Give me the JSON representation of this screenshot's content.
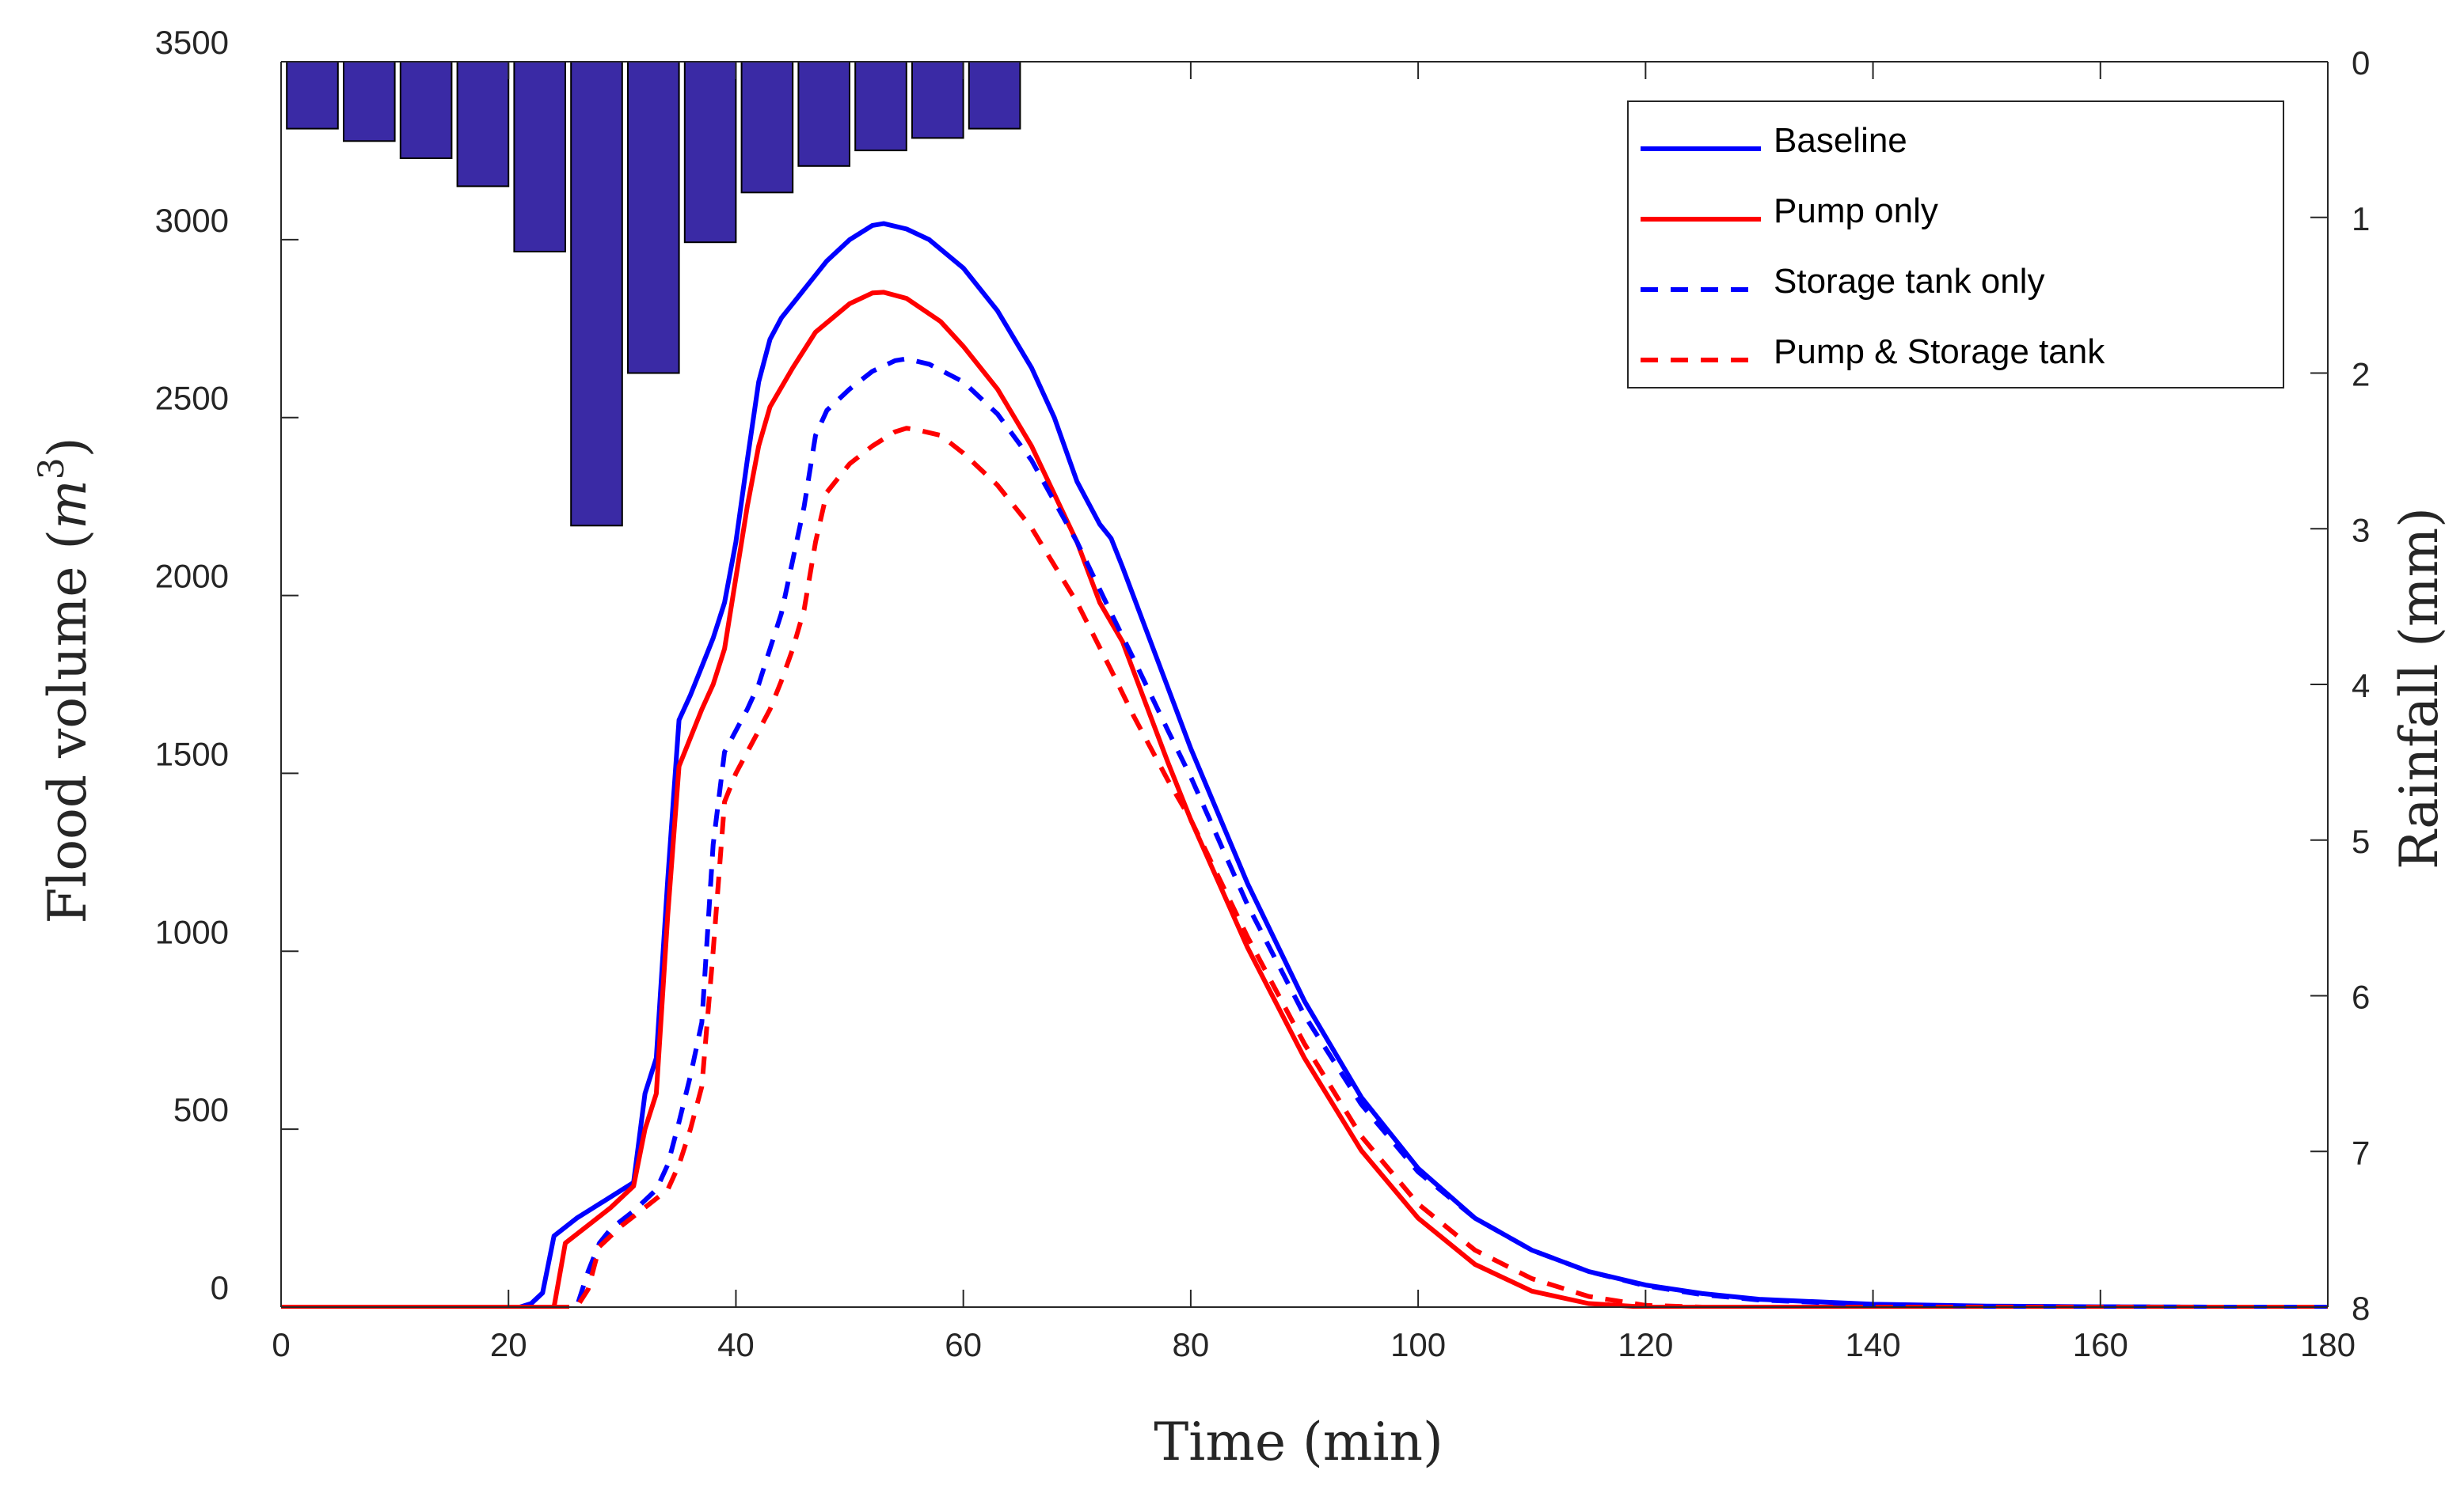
{
  "chart_data": {
    "type": "line",
    "xlabel": "Time (min)",
    "ylabel_left": {
      "prefix": "Flood volume (",
      "var": "m",
      "exp": "3",
      "suffix": ")"
    },
    "ylabel_right": "Rainfall (mm)",
    "xlim": [
      0,
      180
    ],
    "ylim_left": [
      0,
      3500
    ],
    "ylim_right_reversed": [
      0,
      8
    ],
    "xticks": [
      0,
      20,
      40,
      60,
      80,
      100,
      120,
      140,
      160,
      180
    ],
    "yticks_left": [
      0,
      500,
      1000,
      1500,
      2000,
      2500,
      3000,
      3500
    ],
    "yticks_right": [
      0,
      1,
      2,
      3,
      4,
      5,
      6,
      7,
      8
    ],
    "rainfall": {
      "name": "Rainfall",
      "color": "#3a2aa5",
      "bar_width_min": 4.5,
      "bars": [
        {
          "t": 0.5,
          "mm": 0.43
        },
        {
          "t": 5.5,
          "mm": 0.51
        },
        {
          "t": 10.5,
          "mm": 0.62
        },
        {
          "t": 15.5,
          "mm": 0.8
        },
        {
          "t": 20.5,
          "mm": 1.22
        },
        {
          "t": 25.5,
          "mm": 2.98
        },
        {
          "t": 30.5,
          "mm": 2.0
        },
        {
          "t": 35.5,
          "mm": 1.16
        },
        {
          "t": 40.5,
          "mm": 0.84
        },
        {
          "t": 45.5,
          "mm": 0.67
        },
        {
          "t": 50.5,
          "mm": 0.57
        },
        {
          "t": 55.5,
          "mm": 0.49
        },
        {
          "t": 60.5,
          "mm": 0.43
        }
      ]
    },
    "series": [
      {
        "name": "Baseline",
        "color": "#0000ff",
        "dash": "solid",
        "points": [
          [
            0,
            0
          ],
          [
            21,
            0
          ],
          [
            22,
            10
          ],
          [
            23,
            40
          ],
          [
            24,
            200
          ],
          [
            26,
            250
          ],
          [
            28,
            290
          ],
          [
            30,
            330
          ],
          [
            31,
            350
          ],
          [
            32,
            600
          ],
          [
            33,
            700
          ],
          [
            34,
            1200
          ],
          [
            35,
            1650
          ],
          [
            36,
            1720
          ],
          [
            37,
            1800
          ],
          [
            38,
            1880
          ],
          [
            39,
            1980
          ],
          [
            40,
            2150
          ],
          [
            41,
            2380
          ],
          [
            42,
            2600
          ],
          [
            43,
            2720
          ],
          [
            44,
            2780
          ],
          [
            46,
            2860
          ],
          [
            48,
            2940
          ],
          [
            50,
            3000
          ],
          [
            52,
            3040
          ],
          [
            53,
            3045
          ],
          [
            55,
            3030
          ],
          [
            57,
            3000
          ],
          [
            60,
            2920
          ],
          [
            63,
            2800
          ],
          [
            66,
            2640
          ],
          [
            68,
            2500
          ],
          [
            70,
            2320
          ],
          [
            71,
            2260
          ],
          [
            72,
            2200
          ],
          [
            73,
            2160
          ],
          [
            74,
            2080
          ],
          [
            76,
            1910
          ],
          [
            78,
            1740
          ],
          [
            80,
            1570
          ],
          [
            85,
            1190
          ],
          [
            90,
            860
          ],
          [
            95,
            590
          ],
          [
            100,
            390
          ],
          [
            105,
            250
          ],
          [
            110,
            160
          ],
          [
            115,
            100
          ],
          [
            120,
            62
          ],
          [
            125,
            38
          ],
          [
            130,
            22
          ],
          [
            140,
            8
          ],
          [
            150,
            3
          ],
          [
            160,
            1
          ],
          [
            170,
            0
          ],
          [
            180,
            0
          ]
        ]
      },
      {
        "name": "Pump only",
        "color": "#ff0000",
        "dash": "solid",
        "points": [
          [
            0,
            0
          ],
          [
            24,
            0
          ],
          [
            25,
            180
          ],
          [
            27,
            230
          ],
          [
            29,
            280
          ],
          [
            31,
            340
          ],
          [
            32,
            500
          ],
          [
            33,
            600
          ],
          [
            34,
            1100
          ],
          [
            35,
            1520
          ],
          [
            36,
            1600
          ],
          [
            37,
            1680
          ],
          [
            38,
            1750
          ],
          [
            39,
            1850
          ],
          [
            40,
            2050
          ],
          [
            41,
            2250
          ],
          [
            42,
            2420
          ],
          [
            43,
            2530
          ],
          [
            45,
            2640
          ],
          [
            47,
            2740
          ],
          [
            50,
            2820
          ],
          [
            52,
            2850
          ],
          [
            53,
            2852
          ],
          [
            55,
            2835
          ],
          [
            58,
            2770
          ],
          [
            60,
            2700
          ],
          [
            63,
            2580
          ],
          [
            66,
            2420
          ],
          [
            70,
            2150
          ],
          [
            72,
            1980
          ],
          [
            74,
            1870
          ],
          [
            76,
            1700
          ],
          [
            78,
            1530
          ],
          [
            80,
            1370
          ],
          [
            85,
            1010
          ],
          [
            90,
            700
          ],
          [
            95,
            440
          ],
          [
            100,
            250
          ],
          [
            105,
            120
          ],
          [
            110,
            45
          ],
          [
            115,
            10
          ],
          [
            120,
            0
          ],
          [
            180,
            0
          ]
        ]
      },
      {
        "name": "Storage tank only",
        "color": "#0000ff",
        "dash": "dashed",
        "points": [
          [
            0,
            0
          ],
          [
            26,
            0
          ],
          [
            27,
            100
          ],
          [
            28,
            180
          ],
          [
            29,
            220
          ],
          [
            31,
            270
          ],
          [
            32,
            300
          ],
          [
            33,
            330
          ],
          [
            34,
            400
          ],
          [
            35,
            520
          ],
          [
            36,
            650
          ],
          [
            37,
            800
          ],
          [
            38,
            1300
          ],
          [
            39,
            1560
          ],
          [
            40,
            1620
          ],
          [
            41,
            1680
          ],
          [
            42,
            1750
          ],
          [
            43,
            1850
          ],
          [
            44,
            1950
          ],
          [
            45,
            2100
          ],
          [
            46,
            2250
          ],
          [
            47,
            2450
          ],
          [
            48,
            2520
          ],
          [
            50,
            2580
          ],
          [
            52,
            2630
          ],
          [
            54,
            2660
          ],
          [
            55,
            2665
          ],
          [
            57,
            2650
          ],
          [
            60,
            2600
          ],
          [
            63,
            2510
          ],
          [
            66,
            2380
          ],
          [
            70,
            2150
          ],
          [
            73,
            1950
          ],
          [
            75,
            1820
          ],
          [
            78,
            1620
          ],
          [
            80,
            1490
          ],
          [
            85,
            1130
          ],
          [
            90,
            820
          ],
          [
            95,
            570
          ],
          [
            100,
            380
          ],
          [
            105,
            250
          ],
          [
            110,
            160
          ],
          [
            115,
            100
          ],
          [
            120,
            60
          ],
          [
            125,
            35
          ],
          [
            130,
            20
          ],
          [
            140,
            7
          ],
          [
            150,
            2
          ],
          [
            160,
            1
          ],
          [
            170,
            0
          ],
          [
            180,
            0
          ]
        ]
      },
      {
        "name": "Pump & Storage tank",
        "color": "#ff0000",
        "dash": "dashed",
        "points": [
          [
            0,
            0
          ],
          [
            26,
            0
          ],
          [
            27,
            50
          ],
          [
            28,
            170
          ],
          [
            30,
            230
          ],
          [
            32,
            280
          ],
          [
            34,
            330
          ],
          [
            35,
            400
          ],
          [
            36,
            500
          ],
          [
            37,
            620
          ],
          [
            38,
            1000
          ],
          [
            39,
            1420
          ],
          [
            40,
            1500
          ],
          [
            41,
            1560
          ],
          [
            42,
            1620
          ],
          [
            43,
            1680
          ],
          [
            44,
            1760
          ],
          [
            45,
            1850
          ],
          [
            46,
            1960
          ],
          [
            47,
            2150
          ],
          [
            48,
            2290
          ],
          [
            50,
            2370
          ],
          [
            52,
            2420
          ],
          [
            54,
            2460
          ],
          [
            55,
            2470
          ],
          [
            56,
            2465
          ],
          [
            58,
            2450
          ],
          [
            60,
            2400
          ],
          [
            63,
            2310
          ],
          [
            66,
            2190
          ],
          [
            70,
            1980
          ],
          [
            73,
            1790
          ],
          [
            75,
            1660
          ],
          [
            78,
            1480
          ],
          [
            80,
            1370
          ],
          [
            85,
            1040
          ],
          [
            90,
            740
          ],
          [
            95,
            480
          ],
          [
            100,
            290
          ],
          [
            105,
            160
          ],
          [
            110,
            80
          ],
          [
            115,
            30
          ],
          [
            120,
            5
          ],
          [
            125,
            0
          ],
          [
            180,
            0
          ]
        ]
      }
    ]
  }
}
